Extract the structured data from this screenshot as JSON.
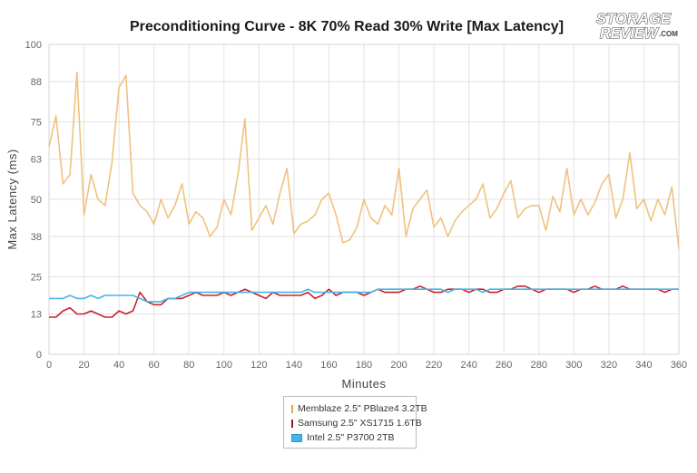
{
  "logo": {
    "line1": "STORAGE",
    "line2": "REVIEW",
    "suffix": ".COM"
  },
  "colors": {
    "memblaze": "#f0c27f",
    "samsung": "#c8232b",
    "intel": "#45b6e8"
  },
  "chart_data": {
    "type": "line",
    "title": "Preconditioning Curve - 8K 70% Read 30% Write [Max Latency]",
    "xlabel": "Minutes",
    "ylabel": "Max Latency (ms)",
    "xlim": [
      0,
      360
    ],
    "ylim": [
      0,
      100
    ],
    "x_ticks": [
      0,
      20,
      40,
      60,
      80,
      100,
      120,
      140,
      160,
      180,
      200,
      220,
      240,
      260,
      280,
      300,
      320,
      340,
      360
    ],
    "y_ticks": [
      0,
      13,
      25,
      38,
      50,
      63,
      75,
      88,
      100
    ],
    "grid": true,
    "legend_position": "bottom",
    "x": [
      0,
      4,
      8,
      12,
      16,
      20,
      24,
      28,
      32,
      36,
      40,
      44,
      48,
      52,
      56,
      60,
      64,
      68,
      72,
      76,
      80,
      84,
      88,
      92,
      96,
      100,
      104,
      108,
      112,
      116,
      120,
      124,
      128,
      132,
      136,
      140,
      144,
      148,
      152,
      156,
      160,
      164,
      168,
      172,
      176,
      180,
      184,
      188,
      192,
      196,
      200,
      204,
      208,
      212,
      216,
      220,
      224,
      228,
      232,
      236,
      240,
      244,
      248,
      252,
      256,
      260,
      264,
      268,
      272,
      276,
      280,
      284,
      288,
      292,
      296,
      300,
      304,
      308,
      312,
      316,
      320,
      324,
      328,
      332,
      336,
      340,
      344,
      348,
      352,
      356,
      360
    ],
    "series": [
      {
        "name": "Memblaze 2.5\" PBlaze4 3.2TB",
        "color": "#f0c27f",
        "values": [
          67,
          77,
          55,
          58,
          91,
          45,
          58,
          50,
          48,
          62,
          86,
          90,
          52,
          48,
          46,
          42,
          50,
          44,
          48,
          55,
          42,
          46,
          44,
          38,
          41,
          50,
          45,
          58,
          76,
          40,
          44,
          48,
          42,
          52,
          60,
          39,
          42,
          43,
          45,
          50,
          52,
          45,
          36,
          37,
          41,
          50,
          44,
          42,
          48,
          45,
          60,
          38,
          47,
          50,
          53,
          41,
          44,
          38,
          43,
          46,
          48,
          50,
          55,
          44,
          47,
          52,
          56,
          44,
          47,
          48,
          48,
          40,
          51,
          46,
          60,
          45,
          50,
          45,
          49,
          55,
          58,
          44,
          50,
          65,
          47,
          50,
          43,
          50,
          45,
          54,
          34
        ]
      },
      {
        "name": "Samsung 2.5\" XS1715 1.6TB",
        "color": "#c8232b",
        "values": [
          12,
          12,
          14,
          15,
          13,
          13,
          14,
          13,
          12,
          12,
          14,
          13,
          14,
          20,
          17,
          16,
          16,
          18,
          18,
          18,
          19,
          20,
          19,
          19,
          19,
          20,
          19,
          20,
          21,
          20,
          19,
          18,
          20,
          19,
          19,
          19,
          19,
          20,
          18,
          19,
          21,
          19,
          20,
          20,
          20,
          19,
          20,
          21,
          20,
          20,
          20,
          21,
          21,
          22,
          21,
          20,
          20,
          21,
          21,
          21,
          20,
          21,
          21,
          20,
          20,
          21,
          21,
          22,
          22,
          21,
          20,
          21,
          21,
          21,
          21,
          20,
          21,
          21,
          22,
          21,
          21,
          21,
          22,
          21,
          21,
          21,
          21,
          21,
          20,
          21,
          21
        ]
      },
      {
        "name": "Intel 2.5\" P3700 2TB",
        "color": "#45b6e8",
        "values": [
          18,
          18,
          18,
          19,
          18,
          18,
          19,
          18,
          19,
          19,
          19,
          19,
          19,
          18,
          17,
          17,
          17,
          18,
          18,
          19,
          20,
          20,
          20,
          20,
          20,
          20,
          20,
          20,
          20,
          20,
          20,
          20,
          20,
          20,
          20,
          20,
          20,
          21,
          20,
          20,
          20,
          20,
          20,
          20,
          20,
          20,
          20,
          21,
          21,
          21,
          21,
          21,
          21,
          21,
          21,
          21,
          21,
          20,
          21,
          21,
          21,
          21,
          20,
          21,
          21,
          21,
          21,
          21,
          21,
          21,
          21,
          21,
          21,
          21,
          21,
          21,
          21,
          21,
          21,
          21,
          21,
          21,
          21,
          21,
          21,
          21,
          21,
          21,
          21,
          21,
          21
        ]
      }
    ]
  }
}
